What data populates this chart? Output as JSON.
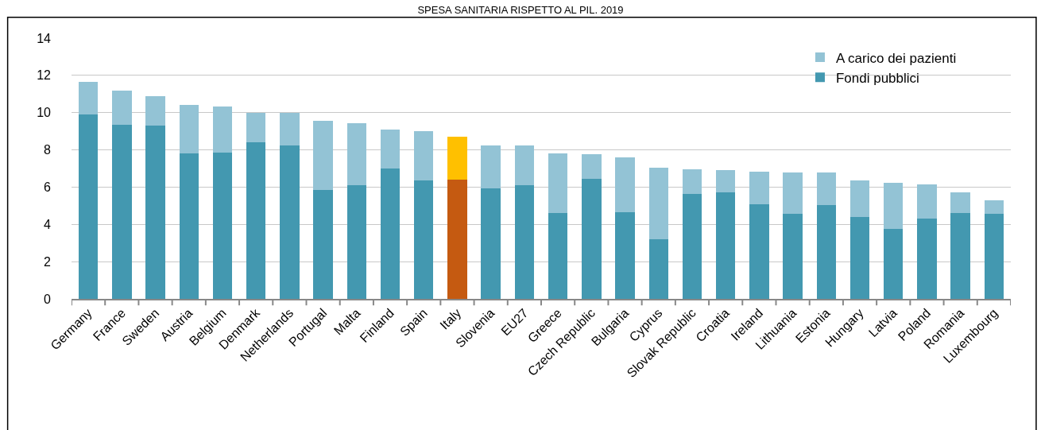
{
  "chart_data": {
    "type": "bar",
    "title": "SPESA SANITARIA RISPETTO AL PIL. 2019",
    "stacked": true,
    "categories": [
      "Germany",
      "France",
      "Sweden",
      "Austria",
      "Belgium",
      "Denmark",
      "Netherlands",
      "Portugal",
      "Malta",
      "Finland",
      "Spain",
      "Italy",
      "Slovenia",
      "EU27",
      "Greece",
      "Czech Republic",
      "Bulgaria",
      "Cyprus",
      "Slovak Republic",
      "Croatia",
      "Ireland",
      "Lithuania",
      "Estonia",
      "Hungary",
      "Latvia",
      "Poland",
      "Romania",
      "Luxembourg"
    ],
    "series": [
      {
        "name": "Fondi pubblici",
        "color": "#4398b0",
        "colors": [
          "#4398b0",
          "#4398b0",
          "#4398b0",
          "#4398b0",
          "#4398b0",
          "#4398b0",
          "#4398b0",
          "#4398b0",
          "#4398b0",
          "#4398b0",
          "#4398b0",
          "#c55a11",
          "#4398b0",
          "#4398b0",
          "#4398b0",
          "#4398b0",
          "#4398b0",
          "#4398b0",
          "#4398b0",
          "#4398b0",
          "#4398b0",
          "#4398b0",
          "#4398b0",
          "#4398b0",
          "#4398b0",
          "#4398b0",
          "#4398b0",
          "#4398b0"
        ],
        "values": [
          9.9,
          9.35,
          9.3,
          7.8,
          7.85,
          8.4,
          8.25,
          5.85,
          6.1,
          7.0,
          6.35,
          6.4,
          5.95,
          6.1,
          4.6,
          6.45,
          4.65,
          3.2,
          5.65,
          5.7,
          5.1,
          4.55,
          5.05,
          4.4,
          3.75,
          4.3,
          4.6,
          4.55
        ]
      },
      {
        "name": "A carico dei pazienti",
        "color": "#93c3d5",
        "colors": [
          "#93c3d5",
          "#93c3d5",
          "#93c3d5",
          "#93c3d5",
          "#93c3d5",
          "#93c3d5",
          "#93c3d5",
          "#93c3d5",
          "#93c3d5",
          "#93c3d5",
          "#93c3d5",
          "#ffc000",
          "#93c3d5",
          "#93c3d5",
          "#93c3d5",
          "#93c3d5",
          "#93c3d5",
          "#93c3d5",
          "#93c3d5",
          "#93c3d5",
          "#93c3d5",
          "#93c3d5",
          "#93c3d5",
          "#93c3d5",
          "#93c3d5",
          "#93c3d5",
          "#93c3d5",
          "#93c3d5"
        ],
        "values": [
          1.75,
          1.85,
          1.6,
          2.6,
          2.5,
          1.6,
          1.75,
          3.7,
          3.35,
          2.1,
          2.65,
          2.3,
          2.3,
          2.15,
          3.2,
          1.3,
          2.95,
          3.85,
          1.3,
          1.2,
          1.75,
          2.25,
          1.75,
          1.95,
          2.5,
          1.85,
          1.1,
          0.75
        ]
      }
    ],
    "ylim": [
      0,
      14
    ],
    "yticks": [
      0,
      2,
      4,
      6,
      8,
      10,
      12,
      14
    ],
    "grid": "y",
    "legend": "top right"
  }
}
